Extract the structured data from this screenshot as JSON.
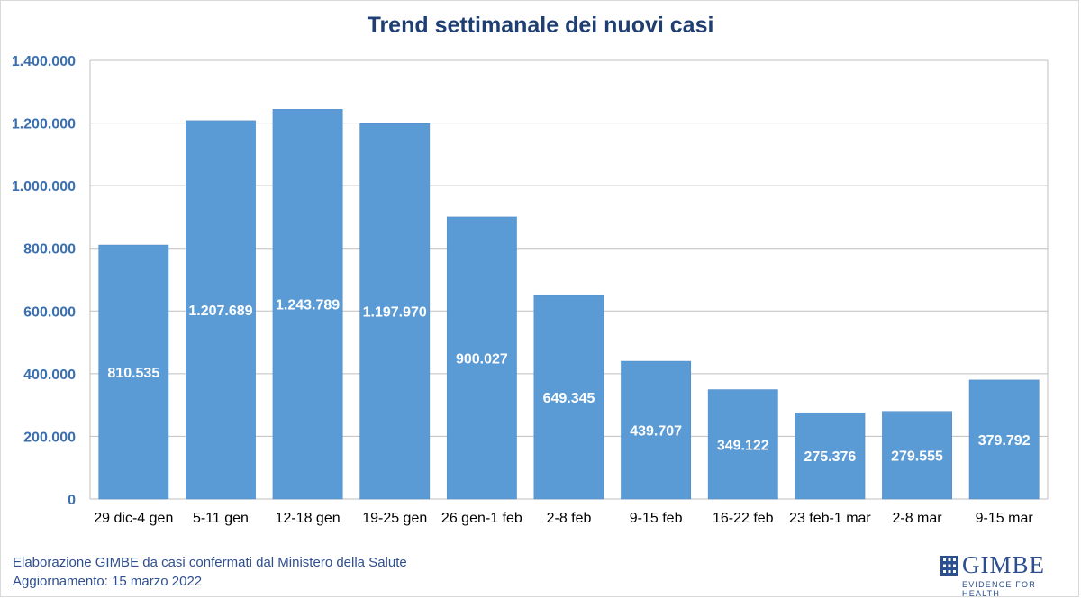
{
  "chart_data": {
    "type": "bar",
    "title": "Trend settimanale dei nuovi casi",
    "categories": [
      "29 dic-4 gen",
      "5-11 gen",
      "12-18 gen",
      "19-25 gen",
      "26 gen-1 feb",
      "2-8 feb",
      "9-15 feb",
      "16-22 feb",
      "23 feb-1 mar",
      "2-8 mar",
      "9-15 mar"
    ],
    "values": [
      810535,
      1207689,
      1243789,
      1197970,
      900027,
      649345,
      439707,
      349122,
      275376,
      279555,
      379792
    ],
    "data_labels": [
      "810.535",
      "1.207.689",
      "1.243.789",
      "1.197.970",
      "900.027",
      "649.345",
      "439.707",
      "349.122",
      "275.376",
      "279.555",
      "379.792"
    ],
    "yticks": [
      "0",
      "200.000",
      "400.000",
      "600.000",
      "800.000",
      "1.000.000",
      "1.200.000",
      "1.400.000"
    ],
    "ylim": [
      0,
      1400000
    ],
    "grid": true,
    "legend": "none",
    "bar_color": "#5b9bd5"
  },
  "footer": {
    "source": "Elaborazione GIMBE da casi confermati dal Ministero della Salute",
    "updated": "Aggiornamento: 15 marzo 2022"
  },
  "logo": {
    "name": "GIMBE",
    "tagline": "EVIDENCE FOR HEALTH"
  }
}
